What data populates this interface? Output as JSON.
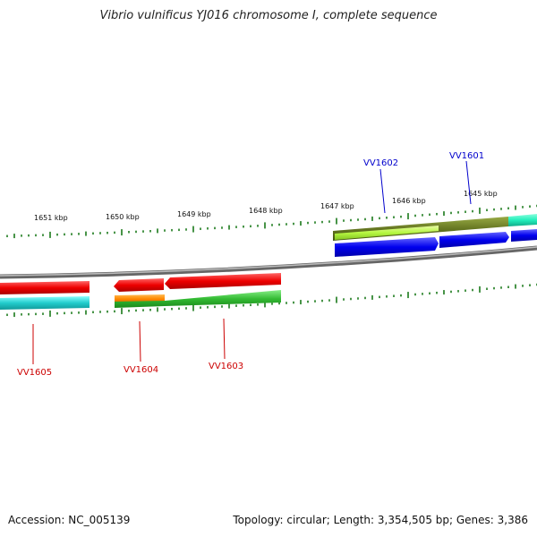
{
  "title": "Vibrio vulnificus YJ016 chromosome I, complete sequence",
  "accession_text": "Accession: NC_005139",
  "summary_text": "Topology: circular; Length: 3,354,505 bp; Genes: 3,386",
  "scale_labels": [
    "1651 kbp",
    "1650 kbp",
    "1649 kbp",
    "1648 kbp",
    "1647 kbp",
    "1646 kbp",
    "1645 kbp"
  ],
  "genes_forward": [
    {
      "name": "VV1602",
      "color": "#0000cc"
    },
    {
      "name": "VV1601",
      "color": "#0000cc"
    }
  ],
  "genes_reverse": [
    {
      "name": "VV1605",
      "color": "#cc0000"
    },
    {
      "name": "VV1604",
      "color": "#cc0000"
    },
    {
      "name": "VV1603",
      "color": "#cc0000"
    }
  ],
  "colors": {
    "backbone": "#8a8a8a",
    "tick": "#1a7a1a",
    "red": "#ee1111",
    "cyan": "#22cccc",
    "orange": "#ff8800",
    "green": "#33bb33",
    "olive": "#667722",
    "lime": "#bbff44",
    "blue": "#0000ee",
    "teal": "#22eebb"
  }
}
